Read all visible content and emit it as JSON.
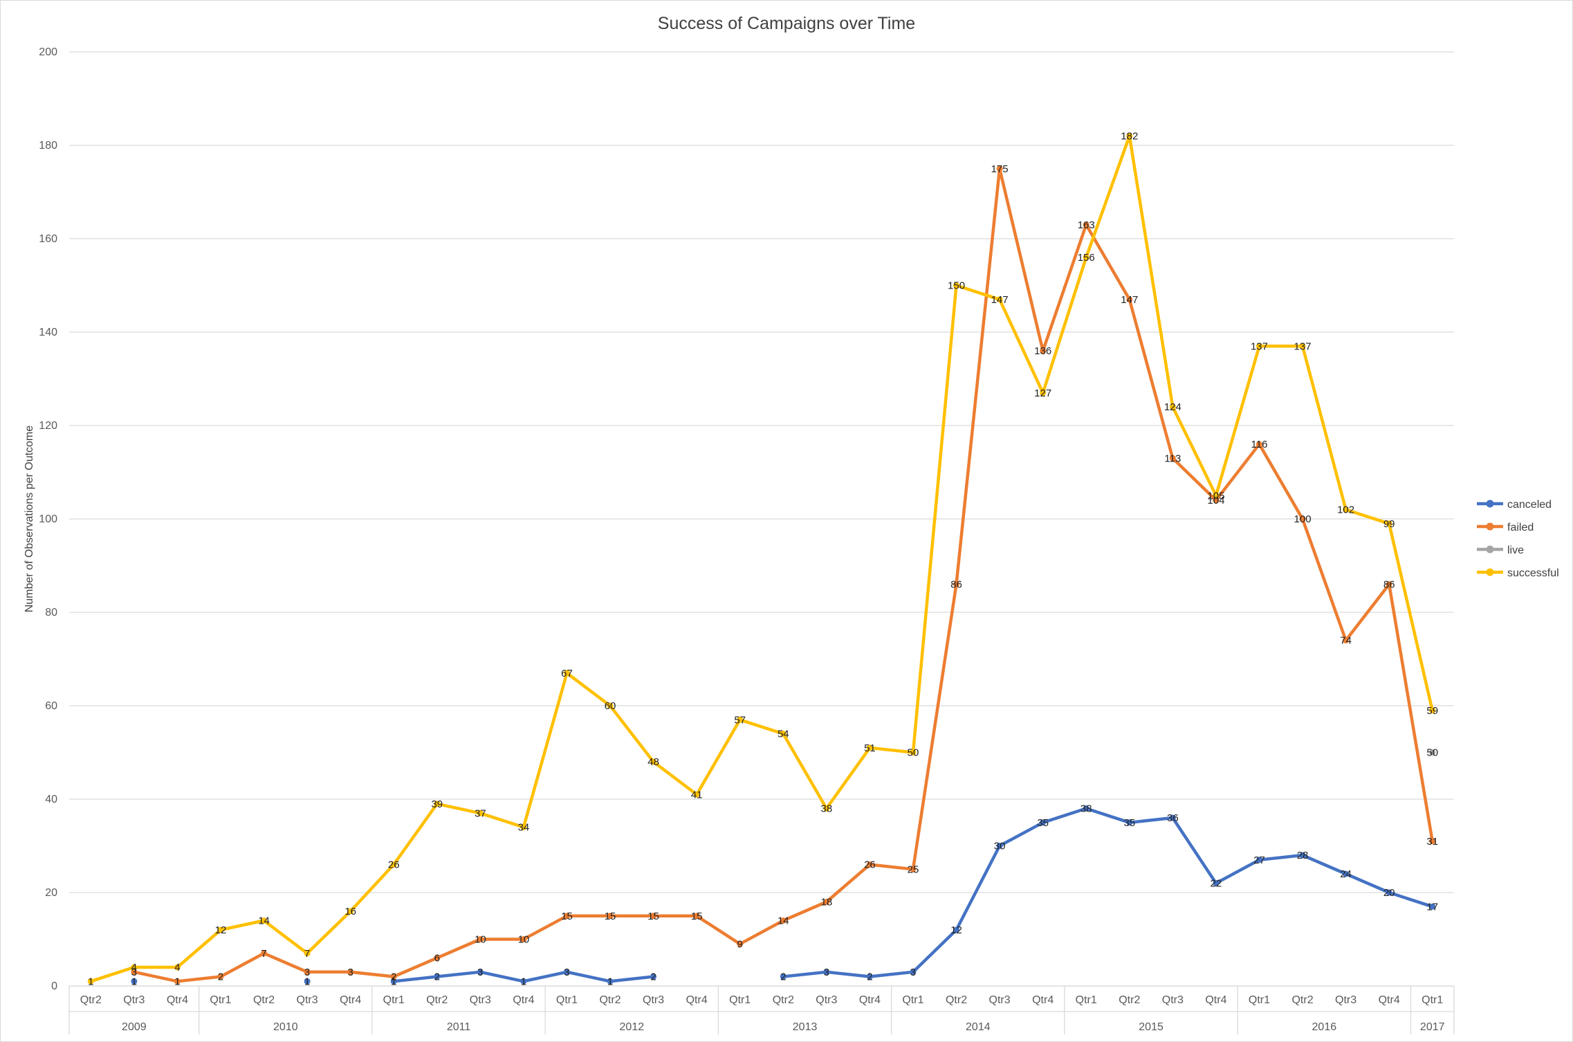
{
  "chart_data": {
    "type": "line",
    "title": "Success of Campaigns over Time",
    "xlabel": "",
    "ylabel": "Number of Observations per Outcome",
    "ylim": [
      0,
      200
    ],
    "yticks": [
      0,
      20,
      40,
      60,
      80,
      100,
      120,
      140,
      160,
      180,
      200
    ],
    "grid": true,
    "legend_position": "right",
    "quarters": [
      "Qtr2",
      "Qtr3",
      "Qtr4",
      "Qtr1",
      "Qtr2",
      "Qtr3",
      "Qtr4",
      "Qtr1",
      "Qtr2",
      "Qtr3",
      "Qtr4",
      "Qtr1",
      "Qtr2",
      "Qtr3",
      "Qtr4",
      "Qtr1",
      "Qtr2",
      "Qtr3",
      "Qtr4",
      "Qtr1",
      "Qtr2",
      "Qtr3",
      "Qtr4",
      "Qtr1",
      "Qtr2",
      "Qtr3",
      "Qtr4",
      "Qtr1",
      "Qtr2",
      "Qtr3",
      "Qtr4",
      "Qtr1"
    ],
    "years": [
      {
        "label": "2009",
        "count": 3
      },
      {
        "label": "2010",
        "count": 4
      },
      {
        "label": "2011",
        "count": 4
      },
      {
        "label": "2012",
        "count": 4
      },
      {
        "label": "2013",
        "count": 4
      },
      {
        "label": "2014",
        "count": 4
      },
      {
        "label": "2015",
        "count": 4
      },
      {
        "label": "2016",
        "count": 4
      },
      {
        "label": "2017",
        "count": 1
      }
    ],
    "series": [
      {
        "name": "canceled",
        "color": "#4472C4",
        "values": [
          null,
          1,
          null,
          null,
          null,
          1,
          null,
          1,
          2,
          3,
          1,
          3,
          1,
          2,
          null,
          null,
          2,
          3,
          2,
          3,
          12,
          30,
          35,
          38,
          35,
          36,
          22,
          27,
          28,
          24,
          20,
          17
        ]
      },
      {
        "name": "failed",
        "color": "#ED7D31",
        "values": [
          null,
          3,
          1,
          2,
          7,
          3,
          3,
          2,
          6,
          10,
          10,
          15,
          15,
          15,
          15,
          9,
          14,
          18,
          26,
          25,
          86,
          175,
          136,
          163,
          147,
          113,
          104,
          116,
          100,
          74,
          86,
          31
        ]
      },
      {
        "name": "live",
        "color": "#A5A5A5",
        "values": [
          null,
          null,
          null,
          null,
          null,
          null,
          null,
          null,
          null,
          null,
          null,
          null,
          null,
          null,
          null,
          null,
          null,
          null,
          null,
          null,
          null,
          null,
          null,
          null,
          null,
          null,
          null,
          null,
          null,
          null,
          null,
          50
        ]
      },
      {
        "name": "successful",
        "color": "#FFC000",
        "values": [
          1,
          4,
          4,
          12,
          14,
          7,
          16,
          26,
          39,
          37,
          34,
          67,
          60,
          48,
          41,
          57,
          54,
          38,
          51,
          50,
          150,
          147,
          127,
          156,
          182,
          124,
          105,
          137,
          137,
          102,
          99,
          59
        ]
      }
    ]
  }
}
